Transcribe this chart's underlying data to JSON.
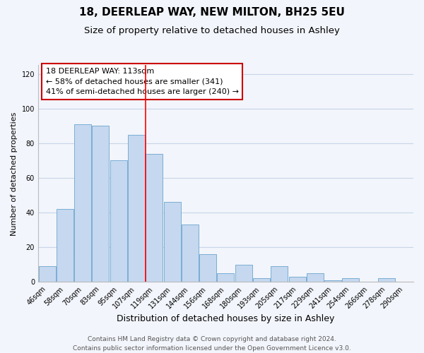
{
  "title": "18, DEERLEAP WAY, NEW MILTON, BH25 5EU",
  "subtitle": "Size of property relative to detached houses in Ashley",
  "xlabel": "Distribution of detached houses by size in Ashley",
  "ylabel": "Number of detached properties",
  "bar_color": "#c5d8ef",
  "bar_edge_color": "#7aaed4",
  "categories": [
    "46sqm",
    "58sqm",
    "70sqm",
    "83sqm",
    "95sqm",
    "107sqm",
    "119sqm",
    "131sqm",
    "144sqm",
    "156sqm",
    "168sqm",
    "180sqm",
    "193sqm",
    "205sqm",
    "217sqm",
    "229sqm",
    "241sqm",
    "254sqm",
    "266sqm",
    "278sqm",
    "290sqm"
  ],
  "values": [
    9,
    42,
    91,
    90,
    70,
    85,
    74,
    46,
    33,
    16,
    5,
    10,
    2,
    9,
    3,
    5,
    1,
    2,
    0,
    2,
    0
  ],
  "ylim": [
    0,
    125
  ],
  "yticks": [
    0,
    20,
    40,
    60,
    80,
    100,
    120
  ],
  "pct_smaller": 58,
  "n_smaller": 341,
  "pct_larger_semi": 41,
  "n_larger_semi": 240,
  "vline_x_index": 5.5,
  "footer_line1": "Contains HM Land Registry data © Crown copyright and database right 2024.",
  "footer_line2": "Contains public sector information licensed under the Open Government Licence v3.0.",
  "background_color": "#f2f5fb",
  "plot_bg_color": "#f2f5fb",
  "grid_color": "#c8d4e8",
  "title_fontsize": 11,
  "subtitle_fontsize": 9.5,
  "xlabel_fontsize": 9,
  "ylabel_fontsize": 8,
  "tick_fontsize": 7,
  "annotation_fontsize": 8,
  "footer_fontsize": 6.5
}
